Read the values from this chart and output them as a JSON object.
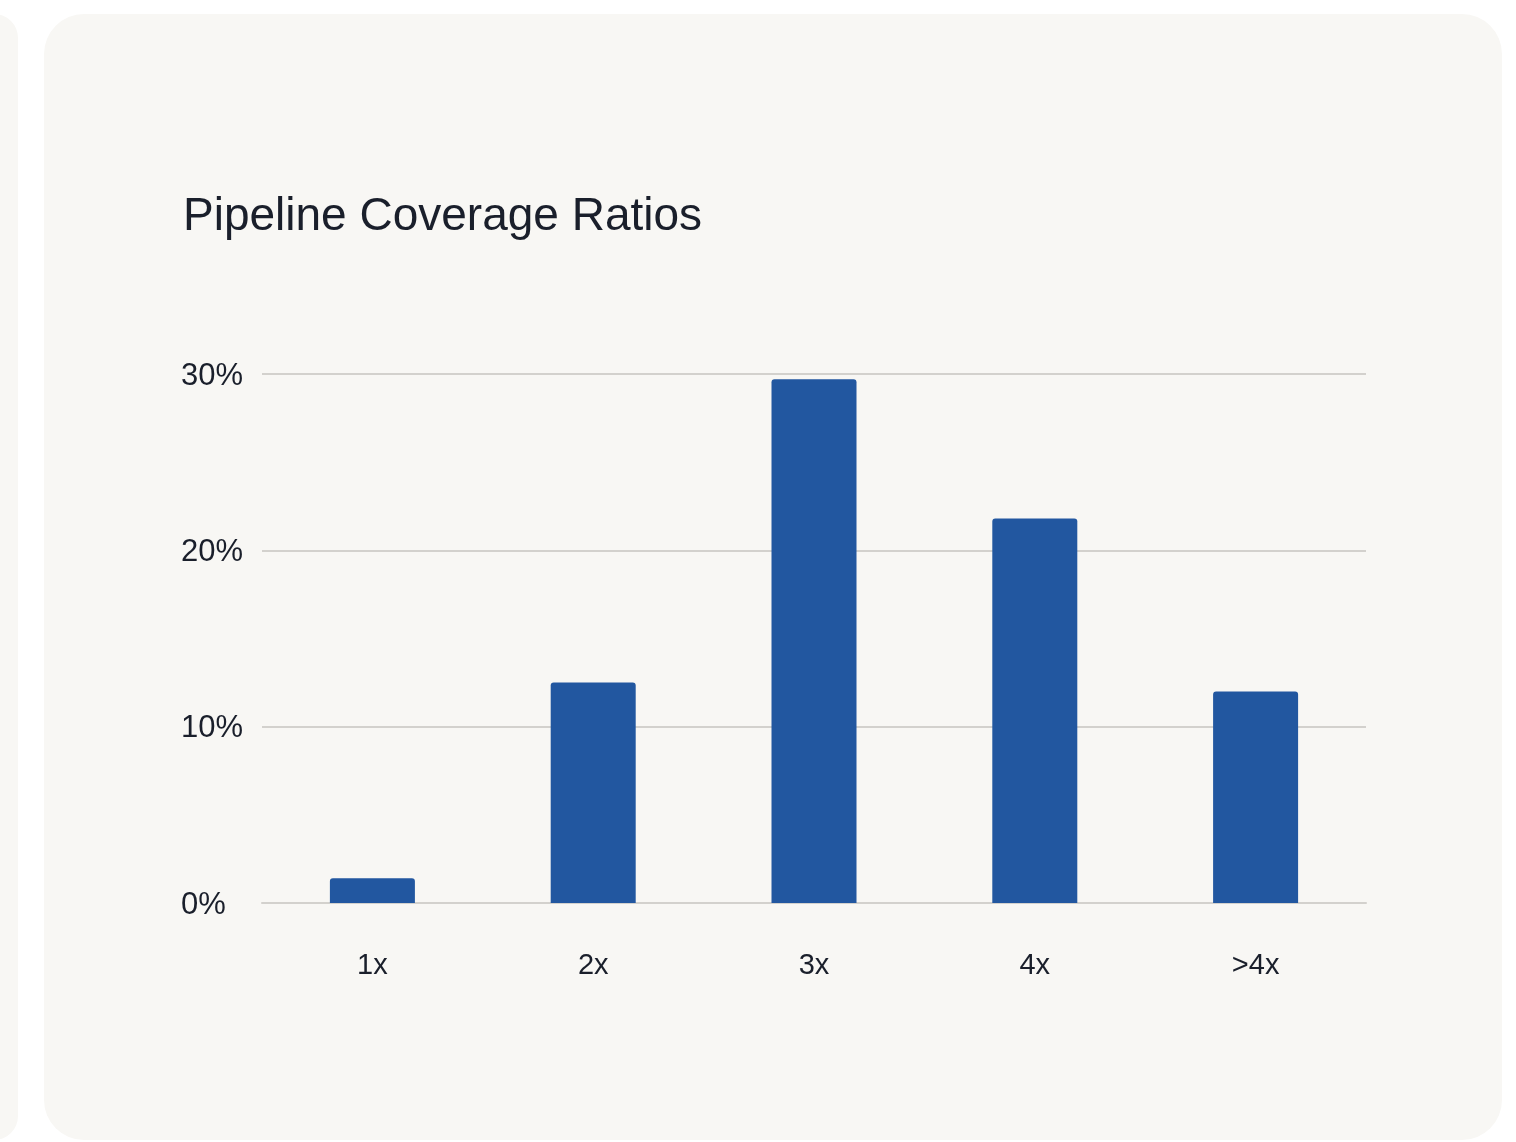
{
  "chart_data": {
    "type": "bar",
    "title": "Pipeline Coverage Ratios",
    "categories": [
      "1x",
      "2x",
      "3x",
      "4x",
      ">4x"
    ],
    "values": [
      1.4,
      12.5,
      29.7,
      21.8,
      12.0
    ],
    "color": "#2257a0",
    "ylim": [
      0,
      30
    ],
    "yticks": [
      {
        "value": 0,
        "label": "0%"
      },
      {
        "value": 10,
        "label": "10%"
      },
      {
        "value": 20,
        "label": "20%"
      },
      {
        "value": 30,
        "label": "30%"
      }
    ],
    "grid": "y"
  }
}
